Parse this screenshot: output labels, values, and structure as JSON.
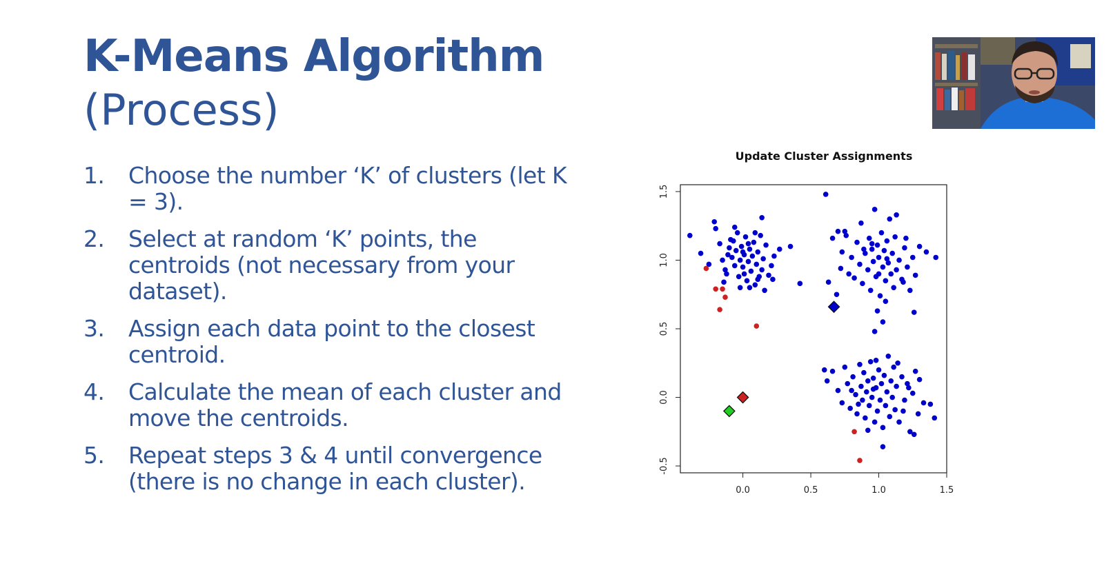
{
  "slide": {
    "title": "K-Means Algorithm",
    "subtitle": "(Process)",
    "steps": [
      {
        "num": "1.",
        "text": "Choose the number ‘K’ of clusters (let K = 3)."
      },
      {
        "num": "2.",
        "text": "Select at random ‘K’ points, the centroids (not necessary from your dataset)."
      },
      {
        "num": "3.",
        "text": "Assign each data point to the closest centroid."
      },
      {
        "num": "4.",
        "text": "Calculate the mean of each cluster and move the centroids."
      },
      {
        "num": "5.",
        "text": "Repeat steps 3 & 4 until convergence (there is no change in each cluster)."
      }
    ]
  },
  "colors": {
    "text": "#2f5597",
    "blue_points": "#0000cc",
    "red_points": "#cc2222",
    "green_centroid": "#22cc22"
  },
  "webcam": {
    "icon": "webcam-presenter-icon"
  },
  "chart_data": {
    "type": "scatter",
    "title": "Update Cluster Assignments",
    "xlabel": "",
    "ylabel": "",
    "xlim": [
      -0.46,
      1.5
    ],
    "ylim": [
      -0.55,
      1.55
    ],
    "x_ticks": [
      "0.0",
      "0.5",
      "1.0",
      "1.5"
    ],
    "x_tick_values": [
      0.0,
      0.5,
      1.0,
      1.5
    ],
    "y_ticks": [
      "-0.5",
      "0.0",
      "0.5",
      "1.0",
      "1.5"
    ],
    "y_tick_values": [
      -0.5,
      0.0,
      0.5,
      1.0,
      1.5
    ],
    "grid": false,
    "legend": "none",
    "series": [
      {
        "color": "#0000cc",
        "points": [
          [
            -0.39,
            1.18
          ],
          [
            -0.31,
            1.05
          ],
          [
            -0.25,
            0.97
          ],
          [
            -0.21,
            1.28
          ],
          [
            -0.2,
            1.23
          ],
          [
            -0.17,
            1.12
          ],
          [
            -0.15,
            1.0
          ],
          [
            -0.13,
            0.93
          ],
          [
            -0.1,
            1.09
          ],
          [
            -0.08,
            1.02
          ],
          [
            -0.07,
            1.14
          ],
          [
            -0.06,
            0.96
          ],
          [
            -0.05,
            1.07
          ],
          [
            -0.04,
            1.2
          ],
          [
            -0.03,
            0.88
          ],
          [
            -0.02,
            1.0
          ],
          [
            -0.01,
            1.1
          ],
          [
            0.0,
            0.95
          ],
          [
            0.01,
            1.04
          ],
          [
            0.02,
            1.17
          ],
          [
            0.03,
            0.85
          ],
          [
            0.04,
            0.99
          ],
          [
            0.05,
            1.08
          ],
          [
            0.06,
            0.92
          ],
          [
            0.07,
            1.03
          ],
          [
            0.08,
            1.13
          ],
          [
            0.09,
            0.82
          ],
          [
            0.1,
            0.97
          ],
          [
            0.11,
            1.06
          ],
          [
            0.12,
            0.88
          ],
          [
            0.13,
            1.18
          ],
          [
            0.14,
            0.93
          ],
          [
            0.15,
            1.01
          ],
          [
            0.16,
            0.78
          ],
          [
            0.17,
            1.11
          ],
          [
            0.19,
            0.89
          ],
          [
            0.21,
            0.96
          ],
          [
            0.23,
            1.03
          ],
          [
            0.27,
            1.08
          ],
          [
            0.35,
            1.1
          ],
          [
            0.42,
            0.83
          ],
          [
            -0.12,
            0.9
          ],
          [
            -0.09,
            1.15
          ],
          [
            -0.02,
            0.8
          ],
          [
            0.05,
            0.8
          ],
          [
            0.14,
            1.31
          ],
          [
            0.22,
            0.86
          ],
          [
            -0.06,
            1.24
          ],
          [
            0.01,
            0.9
          ],
          [
            0.09,
            1.2
          ],
          [
            -0.11,
            1.04
          ],
          [
            0.04,
            1.12
          ],
          [
            0.11,
            0.86
          ],
          [
            -0.14,
            0.84
          ],
          [
            0.0,
            1.06
          ],
          [
            0.61,
            1.48
          ],
          [
            0.63,
            0.84
          ],
          [
            0.66,
            1.16
          ],
          [
            0.69,
            0.75
          ],
          [
            0.7,
            1.21
          ],
          [
            0.72,
            0.94
          ],
          [
            0.73,
            1.06
          ],
          [
            0.76,
            1.18
          ],
          [
            0.78,
            0.9
          ],
          [
            0.8,
            1.02
          ],
          [
            0.82,
            0.87
          ],
          [
            0.84,
            1.13
          ],
          [
            0.86,
            0.97
          ],
          [
            0.87,
            1.27
          ],
          [
            0.88,
            0.83
          ],
          [
            0.9,
            1.05
          ],
          [
            0.92,
            0.93
          ],
          [
            0.93,
            1.16
          ],
          [
            0.94,
            0.78
          ],
          [
            0.95,
            1.08
          ],
          [
            0.96,
            0.99
          ],
          [
            0.97,
            1.37
          ],
          [
            0.98,
            0.88
          ],
          [
            0.99,
            1.11
          ],
          [
            1.0,
            1.02
          ],
          [
            1.01,
            0.74
          ],
          [
            1.02,
            1.2
          ],
          [
            1.03,
            0.95
          ],
          [
            1.04,
            1.07
          ],
          [
            1.05,
            0.85
          ],
          [
            1.06,
            1.14
          ],
          [
            1.07,
            0.98
          ],
          [
            1.08,
            1.3
          ],
          [
            1.09,
            0.9
          ],
          [
            1.1,
            1.05
          ],
          [
            1.11,
            0.8
          ],
          [
            1.12,
            1.17
          ],
          [
            1.13,
            0.93
          ],
          [
            1.15,
            1.0
          ],
          [
            1.17,
            0.86
          ],
          [
            1.19,
            1.09
          ],
          [
            1.21,
            0.95
          ],
          [
            1.23,
            0.78
          ],
          [
            1.25,
            1.02
          ],
          [
            1.27,
            0.89
          ],
          [
            1.3,
            1.1
          ],
          [
            1.35,
            1.06
          ],
          [
            1.42,
            1.02
          ],
          [
            1.26,
            0.62
          ],
          [
            0.97,
            0.48
          ],
          [
            1.03,
            0.55
          ],
          [
            0.99,
            0.63
          ],
          [
            0.75,
            1.21
          ],
          [
            1.13,
            1.33
          ],
          [
            1.05,
            0.7
          ],
          [
            1.18,
            0.84
          ],
          [
            1.2,
            1.16
          ],
          [
            0.95,
            1.12
          ],
          [
            1.0,
            0.9
          ],
          [
            1.06,
            1.01
          ],
          [
            0.89,
            1.08
          ],
          [
            0.6,
            0.2
          ],
          [
            0.62,
            0.12
          ],
          [
            0.66,
            0.19
          ],
          [
            0.7,
            0.05
          ],
          [
            0.73,
            -0.04
          ],
          [
            0.75,
            0.22
          ],
          [
            0.77,
            0.1
          ],
          [
            0.79,
            -0.08
          ],
          [
            0.81,
            0.15
          ],
          [
            0.83,
            0.02
          ],
          [
            0.84,
            -0.12
          ],
          [
            0.86,
            0.24
          ],
          [
            0.87,
            0.08
          ],
          [
            0.88,
            -0.02
          ],
          [
            0.89,
            0.18
          ],
          [
            0.9,
            -0.15
          ],
          [
            0.91,
            0.04
          ],
          [
            0.92,
            0.12
          ],
          [
            0.93,
            -0.06
          ],
          [
            0.94,
            0.26
          ],
          [
            0.95,
            0.0
          ],
          [
            0.96,
            0.14
          ],
          [
            0.97,
            -0.18
          ],
          [
            0.98,
            0.07
          ],
          [
            0.99,
            -0.1
          ],
          [
            1.0,
            0.2
          ],
          [
            1.01,
            -0.02
          ],
          [
            1.02,
            0.1
          ],
          [
            1.03,
            -0.22
          ],
          [
            1.04,
            0.16
          ],
          [
            1.05,
            -0.06
          ],
          [
            1.06,
            0.04
          ],
          [
            1.07,
            0.3
          ],
          [
            1.08,
            -0.14
          ],
          [
            1.09,
            0.12
          ],
          [
            1.1,
            0.0
          ],
          [
            1.11,
            0.22
          ],
          [
            1.12,
            -0.09
          ],
          [
            1.13,
            0.08
          ],
          [
            1.15,
            -0.18
          ],
          [
            1.17,
            0.15
          ],
          [
            1.19,
            -0.02
          ],
          [
            1.21,
            0.1
          ],
          [
            1.23,
            -0.25
          ],
          [
            1.25,
            0.03
          ],
          [
            1.27,
            0.19
          ],
          [
            1.29,
            -0.12
          ],
          [
            1.3,
            0.13
          ],
          [
            1.33,
            -0.04
          ],
          [
            1.38,
            -0.05
          ],
          [
            1.41,
            -0.15
          ],
          [
            1.03,
            -0.36
          ],
          [
            0.98,
            0.27
          ],
          [
            0.85,
            -0.05
          ],
          [
            1.14,
            0.25
          ],
          [
            0.92,
            -0.24
          ],
          [
            1.18,
            -0.1
          ],
          [
            0.8,
            0.05
          ],
          [
            1.26,
            -0.27
          ],
          [
            1.22,
            0.07
          ],
          [
            0.96,
            0.06
          ]
        ]
      },
      {
        "color": "#cc2222",
        "points": [
          [
            -0.27,
            0.94
          ],
          [
            -0.2,
            0.79
          ],
          [
            -0.15,
            0.79
          ],
          [
            -0.13,
            0.73
          ],
          [
            -0.17,
            0.64
          ],
          [
            0.1,
            0.52
          ],
          [
            0.82,
            -0.25
          ],
          [
            0.86,
            -0.46
          ]
        ]
      }
    ],
    "centroids": [
      {
        "x": 0.67,
        "y": 0.66,
        "color": "#0000cc"
      },
      {
        "x": 0.0,
        "y": 0.0,
        "color": "#cc2222"
      },
      {
        "x": -0.1,
        "y": -0.1,
        "color": "#22cc22"
      }
    ]
  }
}
